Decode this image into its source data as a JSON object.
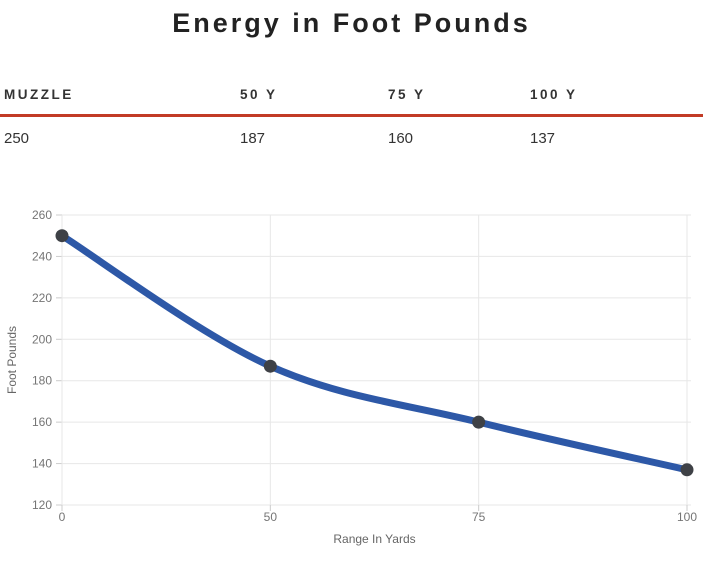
{
  "title": "Energy in Foot Pounds",
  "table": {
    "headers": [
      "MUZZLE",
      "50 Y",
      "75 Y",
      "100 Y"
    ],
    "values": [
      "250",
      "187",
      "160",
      "137"
    ]
  },
  "chart_data": {
    "type": "line",
    "categories": [
      "0",
      "50",
      "75",
      "100"
    ],
    "series": [
      {
        "name": "Energy in Foot Pounds",
        "values": [
          250,
          187,
          160,
          137
        ]
      }
    ],
    "xlabel": "Range In Yards",
    "ylabel": "Foot Pounds",
    "ylim": [
      120,
      260
    ],
    "yticks": [
      120,
      140,
      160,
      180,
      200,
      220,
      240,
      260
    ],
    "grid": true,
    "legend": "none",
    "smooth": true,
    "line_color": "#2d58a7",
    "marker_color": "#3e4146"
  },
  "colors": {
    "rule": "#c23b26",
    "title_text": "#222222",
    "table_text": "#333333",
    "grid": "#e7e7e7",
    "tick": "#cccccc",
    "tick_label": "#757575",
    "axis_title": "#666666"
  }
}
